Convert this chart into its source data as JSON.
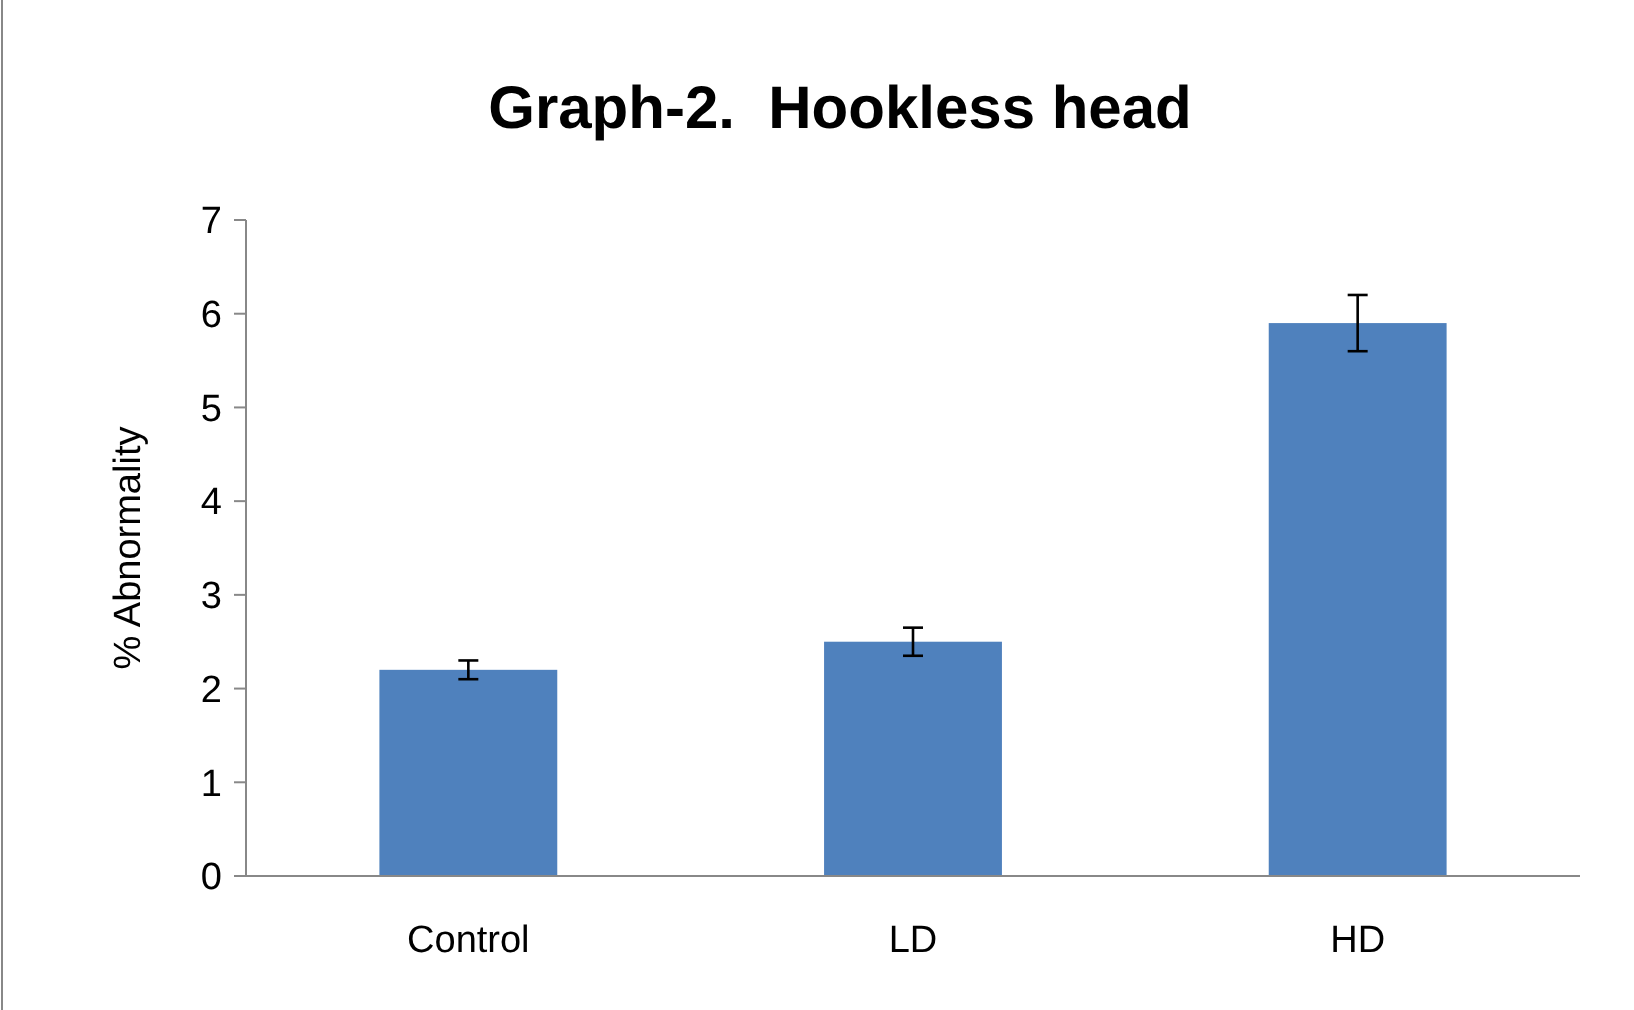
{
  "chart_data": {
    "type": "bar",
    "title": "Graph-2.  Hookless head",
    "ylabel": "% Abnormality",
    "categories": [
      "Control",
      "LD",
      "HD"
    ],
    "values": [
      2.2,
      2.5,
      5.9
    ],
    "errors": [
      0.1,
      0.15,
      0.3
    ],
    "color": "#4f81bd",
    "ylim": [
      0,
      7
    ],
    "yticks": [
      0,
      1,
      2,
      3,
      4,
      5,
      6,
      7
    ],
    "grid": false
  }
}
